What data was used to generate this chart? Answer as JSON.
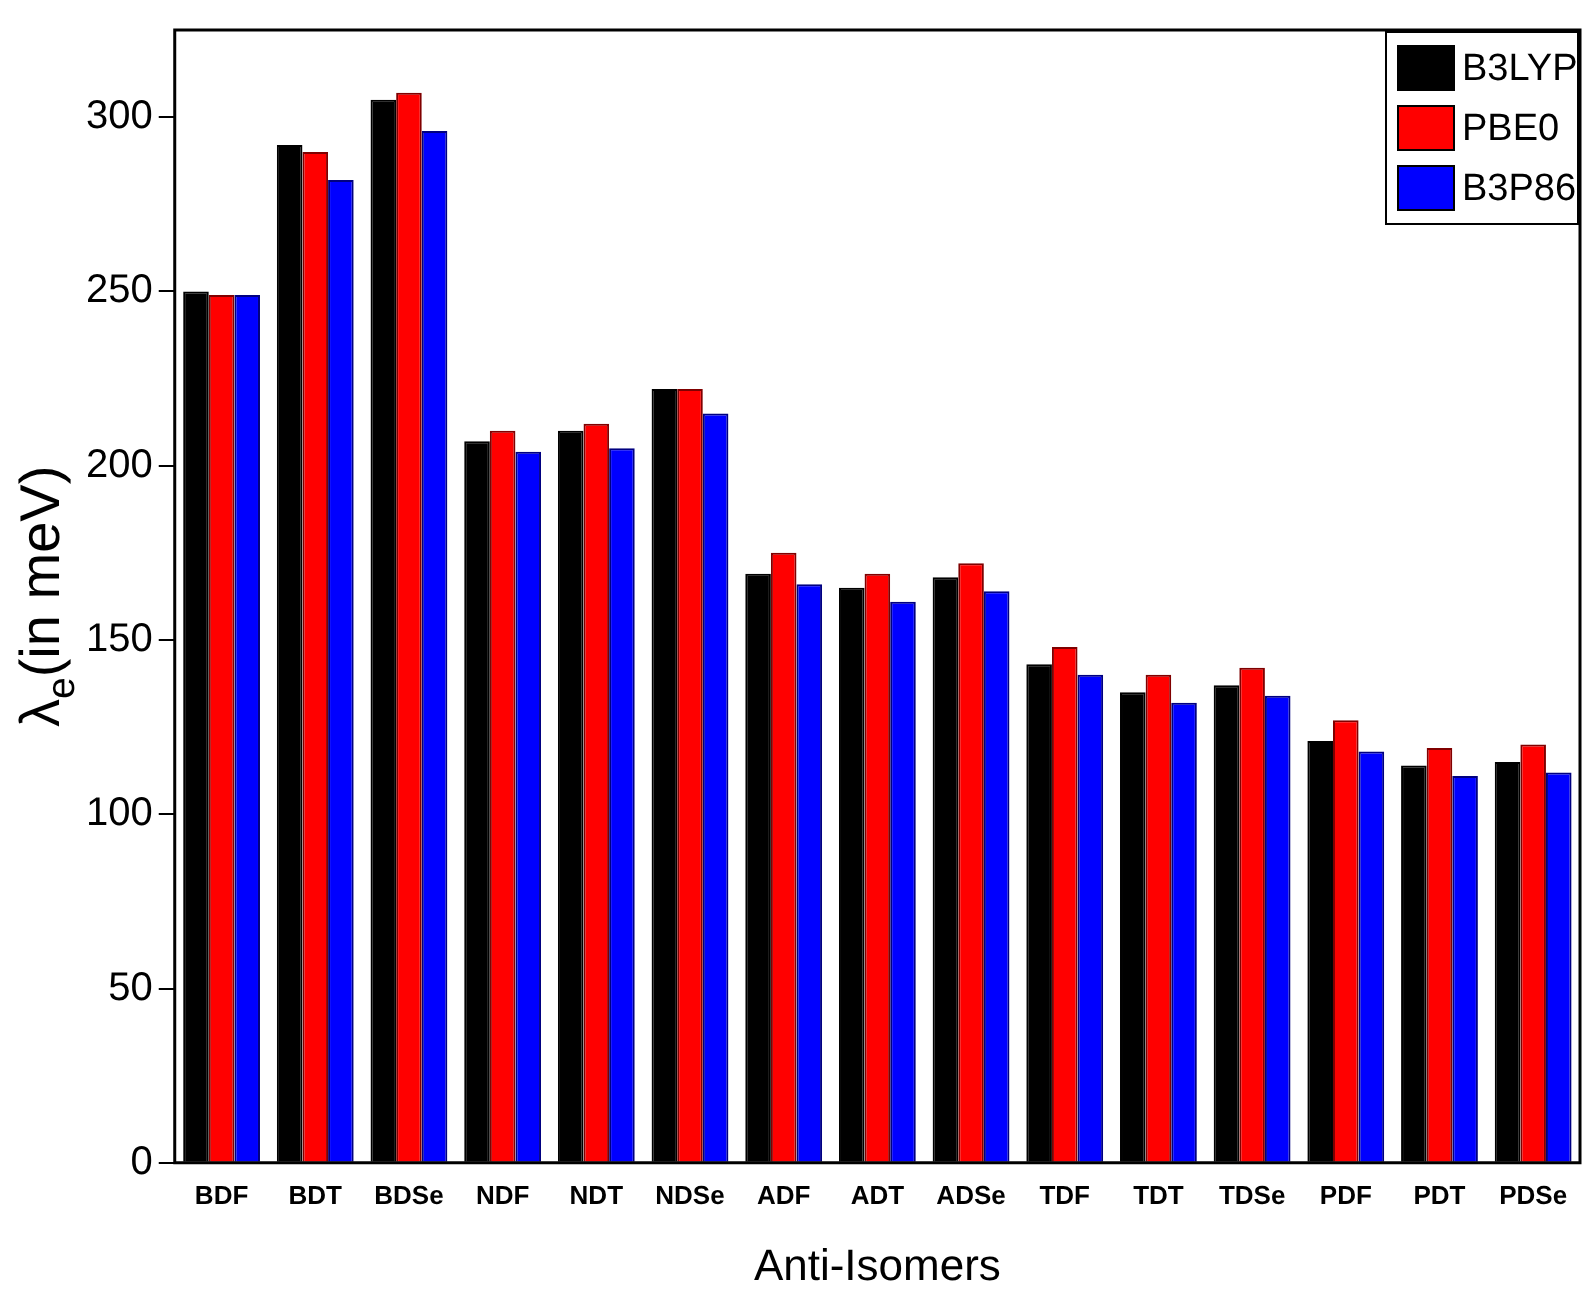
{
  "chart_data": {
    "type": "bar",
    "xlabel": "Anti-Isomers",
    "ylabel": "λ$_{e}$(in meV)",
    "categories": [
      "BDF",
      "BDT",
      "BDSe",
      "NDF",
      "NDT",
      "NDSe",
      "ADF",
      "ADT",
      "ADSe",
      "TDF",
      "TDT",
      "TDSe",
      "PDF",
      "PDT",
      "PDSe"
    ],
    "series": [
      {
        "name": "B3LYP",
        "color": "#000000",
        "values": [
          250,
          292,
          305,
          207,
          210,
          222,
          169,
          165,
          168,
          143,
          135,
          137,
          121,
          114,
          115
        ]
      },
      {
        "name": "PBE0",
        "color": "#ff0000",
        "values": [
          249,
          290,
          307,
          210,
          212,
          222,
          175,
          169,
          172,
          148,
          140,
          142,
          127,
          119,
          120
        ]
      },
      {
        "name": "B3P86",
        "color": "#0000ff",
        "values": [
          249,
          282,
          296,
          204,
          205,
          215,
          166,
          161,
          164,
          140,
          132,
          134,
          118,
          111,
          112
        ]
      }
    ],
    "ylim": [
      0,
      325
    ],
    "yticks": [
      0,
      50,
      100,
      150,
      200,
      250,
      300
    ],
    "grid": false,
    "legend": "top right"
  }
}
